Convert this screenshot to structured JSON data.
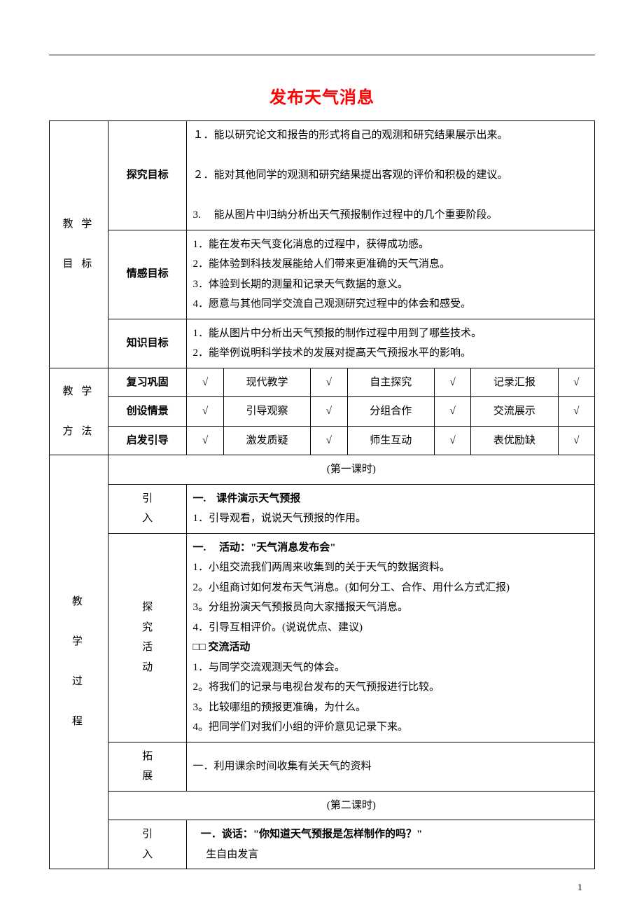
{
  "title": "发布天气消息",
  "page_number": "1",
  "goals_header": "教 学\n\n目 标",
  "inquiry_label": "探究目标",
  "inquiry_items": [
    "１．能以研究论文和报告的形式将自己的观测和研究结果展示出来。",
    "２．能对其他同学的观测和研究结果提出客观的评价和积极的建议。",
    "3.　 能从图片中归纳分析出天气预报制作过程中的几个重要阶段。"
  ],
  "affect_label": "情感目标",
  "affect_items": [
    "1．能在发布天气变化消息的过程中，获得成功感。",
    "2．能体验到科技发展能给人们带来更准确的天气消息。",
    "3．体验到长期的测量和记录天气数据的意义。",
    "4．愿意与其他同学交流自己观测研究过程中的体会和感受。"
  ],
  "knowledge_label": "知识目标",
  "knowledge_items": [
    "1．能从图片中分析出天气预报的制作过程中用到了哪些技术。",
    "2．能举例说明科学技术的发展对提高天气预报水平的影响。"
  ],
  "methods_header": "教 学\n\n方 法",
  "method_rows": [
    [
      "复习巩固",
      "√",
      "现代教学",
      "√",
      "自主探究",
      "√",
      "记录汇报",
      "√"
    ],
    [
      "创设情景",
      "√",
      "引导观察",
      "√",
      "分组合作",
      "√",
      "交流展示",
      "√"
    ],
    [
      "启发引导",
      "√",
      "激发质疑",
      "√",
      "师生互动",
      "√",
      "表优励缺",
      "√"
    ]
  ],
  "process_header": "教\n\n学\n\n过\n\n程",
  "lesson1_title": "(第一课时)",
  "intro_label": "引入",
  "intro1_heading": "一.　课件演示天气预报",
  "intro1_item": "1．引导观看，说说天气预报的作用。",
  "explore_label": "探究活动",
  "explore_heading": "一.　 活动：\"天气消息发布会\"",
  "explore_items": [
    "1．小组交流我们两周来收集到的关于天气的数据资料。",
    "2。小组商讨如何发布天气消息。(如何分工、合作、用什么方式汇报)",
    "3。分组扮演天气预报员向大家播报天气消息。",
    "4．引导互相评价。(说说优点、建议)"
  ],
  "exchange_heading": "交流活动",
  "exchange_prefix": "□□ ",
  "exchange_items": [
    "1．与同学交流观测天气的体会。",
    "2。将我们的记录与电视台发布的天气预报进行比较。",
    "3。比较哪组的预报更准确，为什么。",
    "4。把同学们对我们小组的评价意见记录下来。"
  ],
  "extend_label": "拓展",
  "extend_text": "一．利用课余时间收集有关天气的资料",
  "lesson2_title": "(第二课时)",
  "intro2_heading": "一．谈话：\"你知道天气预报是怎样制作的吗？\"",
  "intro2_item": "生自由发言"
}
